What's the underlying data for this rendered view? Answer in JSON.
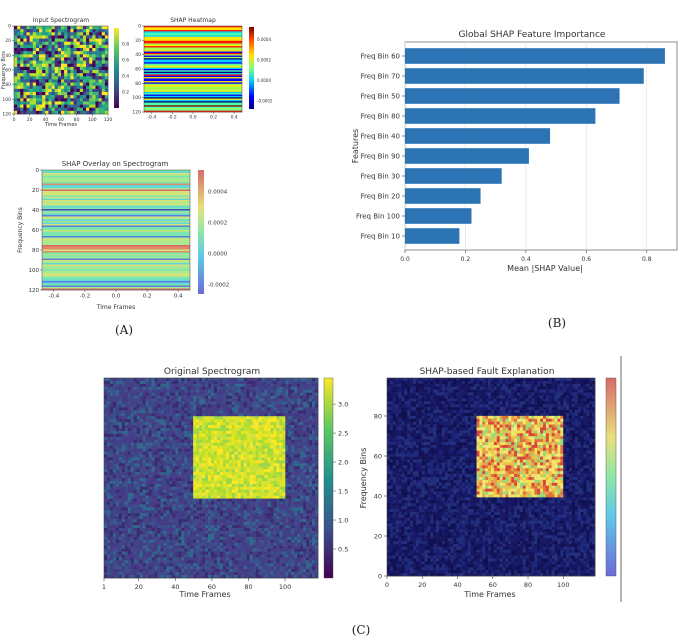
{
  "panel_labels": {
    "a": "(A)",
    "b": "(B)",
    "c": "(C)"
  },
  "colors": {
    "bar": "#2b73b3",
    "grid": "#e3e3e3",
    "axis": "#444444"
  },
  "chart_data": [
    {
      "id": "input-spectrogram",
      "type": "heatmap",
      "title": "Input Spectrogram",
      "xlabel": "Time Frames",
      "ylabel": "Frequency Bins",
      "xticks": [
        "0",
        "20",
        "40",
        "60",
        "80",
        "100",
        "120"
      ],
      "yticks": [
        "0",
        "20",
        "40",
        "60",
        "80",
        "100",
        "120"
      ],
      "colorbar": {
        "colormap": "viridis",
        "ticks": [
          "0.8",
          "0.6",
          "0.4",
          "0.2"
        ]
      },
      "pattern": "random noise"
    },
    {
      "id": "shap-heatmap",
      "type": "heatmap",
      "title": "SHAP Heatmap",
      "xlabel": "",
      "ylabel": "",
      "xticks": [
        "-0.4",
        "-0.2",
        "0.0",
        "0.2",
        "0.4"
      ],
      "yticks": [
        "0",
        "20",
        "40",
        "60",
        "80",
        "100",
        "120"
      ],
      "colorbar": {
        "colormap": "jet",
        "ticks": [
          "0.0004",
          "0.0002",
          "0.0000",
          "-0.0002"
        ]
      },
      "pattern": "horizontal bands"
    },
    {
      "id": "shap-overlay",
      "type": "heatmap",
      "title": "SHAP Overlay on Spectrogram",
      "xlabel": "Time Frames",
      "ylabel": "Frequency Bins",
      "xticks": [
        "-0.4",
        "-0.2",
        "0.0",
        "0.2",
        "0.4"
      ],
      "yticks": [
        "0",
        "20",
        "40",
        "60",
        "80",
        "100",
        "120"
      ],
      "colorbar": {
        "colormap": "jet",
        "ticks": [
          "0.0004",
          "0.0002",
          "0.0000",
          "-0.0002"
        ]
      },
      "pattern": "horizontal bands"
    },
    {
      "id": "global-shap",
      "type": "bar",
      "title": "Global SHAP Feature Importance",
      "xlabel": "Mean |SHAP Value|",
      "ylabel": "Features",
      "orientation": "horizontal",
      "categories": [
        "Freq Bin 60",
        "Freq Bin 70",
        "Freq Bin 50",
        "Freq Bin 80",
        "Freq Bin 40",
        "Freq Bin 90",
        "Freq Bin 30",
        "Freq Bin 20",
        "Freq Bin 100",
        "Freq Bin 10"
      ],
      "values": [
        0.86,
        0.79,
        0.71,
        0.63,
        0.48,
        0.41,
        0.32,
        0.25,
        0.22,
        0.18
      ],
      "xlim": [
        0,
        0.9
      ],
      "xticks": [
        "0.0",
        "0.2",
        "0.4",
        "0.6",
        "0.8"
      ],
      "grid": true
    },
    {
      "id": "original-spectrogram",
      "type": "heatmap",
      "title": "Original Spectrogram",
      "xlabel": "Time Frames",
      "ylabel": "",
      "xticks": [
        "1",
        "20",
        "40",
        "60",
        "80",
        "100"
      ],
      "colorbar": {
        "colormap": "viridis",
        "ticks": [
          "3.0",
          "2.5",
          "2.0",
          "1.5",
          "1.0",
          "0.5"
        ]
      },
      "pattern": "noise background with bright square fault region",
      "fault_region": {
        "x": [
          50,
          100
        ],
        "y": [
          40,
          80
        ]
      }
    },
    {
      "id": "shap-fault-explanation",
      "type": "heatmap",
      "title": "SHAP-based Fault Explanation",
      "xlabel": "Time Frames",
      "ylabel": "Frequency Bins",
      "xticks": [
        "0",
        "20",
        "40",
        "60",
        "80",
        "100"
      ],
      "yticks": [
        "0",
        "20",
        "40",
        "60",
        "80"
      ],
      "colorbar": {
        "colormap": "jet",
        "ticks": []
      },
      "pattern": "dark background with high-SHAP square fault region",
      "fault_region": {
        "x": [
          50,
          100
        ],
        "y": [
          40,
          80
        ]
      }
    }
  ]
}
